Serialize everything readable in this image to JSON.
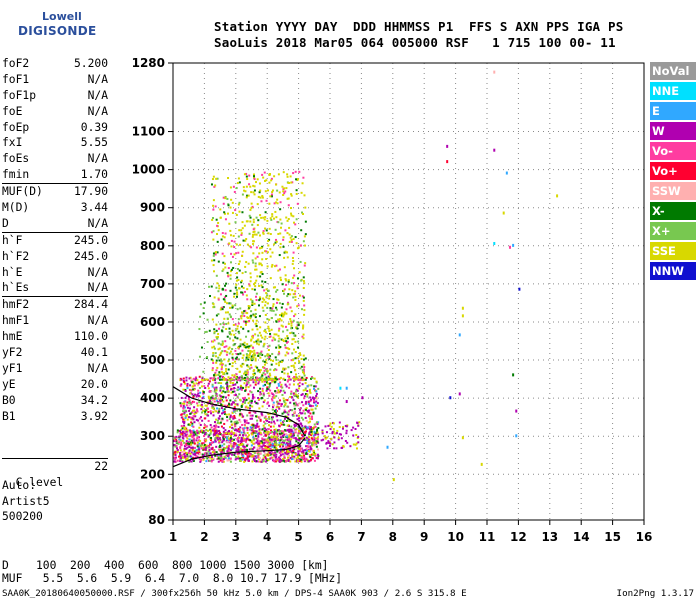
{
  "logo": {
    "line1": "Lowell",
    "line2": "DIGISONDE"
  },
  "header": {
    "line1": "Station YYYY DAY  DDD HHMMSS P1  FFS S AXN PPS IGA PS",
    "line2": "SaoLuis 2018 Mar05 064 005000 RSF   1 715 100 00- 11"
  },
  "params": [
    {
      "name": "foF2",
      "value": "5.200"
    },
    {
      "name": "foF1",
      "value": "N/A"
    },
    {
      "name": "foF1p",
      "value": "N/A"
    },
    {
      "name": "foE",
      "value": "N/A"
    },
    {
      "name": "foEp",
      "value": "0.39"
    },
    {
      "name": "fxI",
      "value": "5.55"
    },
    {
      "name": "foEs",
      "value": "N/A"
    },
    {
      "name": "fmin",
      "value": "1.70"
    },
    {
      "name": "MUF(D)",
      "value": "17.90",
      "sep": true
    },
    {
      "name": "M(D)",
      "value": "3.44"
    },
    {
      "name": "D",
      "value": "N/A"
    },
    {
      "name": "h`F",
      "value": "245.0",
      "sep": true
    },
    {
      "name": "h`F2",
      "value": "245.0"
    },
    {
      "name": "h`E",
      "value": "N/A"
    },
    {
      "name": "h`Es",
      "value": "N/A"
    },
    {
      "name": "hmF2",
      "value": "284.4",
      "sep": true
    },
    {
      "name": "hmF1",
      "value": "N/A"
    },
    {
      "name": "hmE",
      "value": "110.0"
    },
    {
      "name": "yF2",
      "value": "40.1"
    },
    {
      "name": "yF1",
      "value": "N/A"
    },
    {
      "name": "yE",
      "value": "20.0"
    },
    {
      "name": "B0",
      "value": "34.2"
    },
    {
      "name": "B1",
      "value": "3.92"
    }
  ],
  "clevel": {
    "name": "C-level",
    "value": "22"
  },
  "auto": {
    "line1": "Auto:",
    "line2": "Artist5",
    "line3": "500200"
  },
  "legend": [
    {
      "label": "NoVal",
      "color": "#9a9a9a"
    },
    {
      "label": "NNE",
      "color": "#00e0ff"
    },
    {
      "label": "E",
      "color": "#30a8ff"
    },
    {
      "label": "W",
      "color": "#b000b0"
    },
    {
      "label": "Vo-",
      "color": "#ff3ca0"
    },
    {
      "label": "Vo+",
      "color": "#ff0030"
    },
    {
      "label": "SSW",
      "color": "#ffb0b0"
    },
    {
      "label": "X-",
      "color": "#007a00"
    },
    {
      "label": "X+",
      "color": "#78c850"
    },
    {
      "label": "SSE",
      "color": "#d8d800"
    },
    {
      "label": "NNW",
      "color": "#1010d0"
    }
  ],
  "bottom": {
    "d_line": "D    100  200  400  600  800 1000 1500 3000 [km]",
    "muf_line": "MUF   5.5  5.6  5.9  6.4  7.0  8.0 10.7 17.9 [MHz]",
    "footer": "SAA0K_20180640050000.RSF / 300fx256h 50 kHz 5.0 km / DPS-4 SAA0K 903 / 2.6 S 315.8 E",
    "version": "Ion2Png 1.3.17"
  },
  "chart_data": {
    "type": "scatter",
    "xlim": [
      1,
      16
    ],
    "ylim": [
      80,
      1280
    ],
    "x_ticks": [
      "1",
      "2",
      "3",
      "4",
      "5",
      "6",
      "7",
      "8",
      "9",
      "10",
      "11",
      "12",
      "13",
      "14",
      "15",
      "16"
    ],
    "y_ticks": [
      "80",
      "200",
      "300",
      "400",
      "500",
      "600",
      "700",
      "800",
      "900",
      "1000",
      "1100",
      "1280"
    ],
    "grid": true,
    "trace_lines": [
      {
        "name": "O-trace",
        "color": "#000000",
        "points": [
          [
            1.0,
            220
          ],
          [
            1.6,
            240
          ],
          [
            2.2,
            250
          ],
          [
            3.0,
            258
          ],
          [
            4.0,
            262
          ],
          [
            4.6,
            265
          ],
          [
            5.0,
            275
          ],
          [
            5.2,
            295
          ]
        ]
      },
      {
        "name": "profile",
        "color": "#000000",
        "points": [
          [
            1.0,
            430
          ],
          [
            1.6,
            400
          ],
          [
            2.2,
            385
          ],
          [
            3.0,
            372
          ],
          [
            4.0,
            362
          ],
          [
            4.6,
            350
          ],
          [
            5.0,
            330
          ],
          [
            5.2,
            300
          ]
        ]
      }
    ],
    "isolated_points": [
      {
        "x": 9.7,
        "y": 1065,
        "color": "#b000b0"
      },
      {
        "x": 9.7,
        "y": 1025,
        "color": "#ff0030"
      },
      {
        "x": 11.2,
        "y": 1055,
        "color": "#b000b0"
      },
      {
        "x": 11.6,
        "y": 995,
        "color": "#30a8ff"
      },
      {
        "x": 11.2,
        "y": 1260,
        "color": "#ffb0b0"
      },
      {
        "x": 11.5,
        "y": 890,
        "color": "#d8d800"
      },
      {
        "x": 11.2,
        "y": 810,
        "color": "#00e0ff"
      },
      {
        "x": 11.8,
        "y": 805,
        "color": "#30a8ff"
      },
      {
        "x": 11.7,
        "y": 800,
        "color": "#ff3ca0"
      },
      {
        "x": 13.2,
        "y": 935,
        "color": "#d8d800"
      },
      {
        "x": 12.0,
        "y": 690,
        "color": "#1010d0"
      },
      {
        "x": 10.2,
        "y": 640,
        "color": "#d8d800"
      },
      {
        "x": 10.2,
        "y": 620,
        "color": "#d8d800"
      },
      {
        "x": 10.1,
        "y": 570,
        "color": "#30a8ff"
      },
      {
        "x": 11.8,
        "y": 465,
        "color": "#007a00"
      },
      {
        "x": 10.1,
        "y": 415,
        "color": "#b000b0"
      },
      {
        "x": 9.8,
        "y": 405,
        "color": "#1010d0"
      },
      {
        "x": 11.9,
        "y": 305,
        "color": "#30a8ff"
      },
      {
        "x": 11.9,
        "y": 370,
        "color": "#b000b0"
      },
      {
        "x": 10.2,
        "y": 300,
        "color": "#d8d800"
      },
      {
        "x": 10.8,
        "y": 230,
        "color": "#d8d800"
      },
      {
        "x": 7.8,
        "y": 275,
        "color": "#30a8ff"
      },
      {
        "x": 8.0,
        "y": 190,
        "color": "#d8d800"
      },
      {
        "x": 6.3,
        "y": 430,
        "color": "#00e0ff"
      },
      {
        "x": 6.5,
        "y": 395,
        "color": "#b000b0"
      },
      {
        "x": 7.0,
        "y": 405,
        "color": "#b000b0"
      },
      {
        "x": 6.5,
        "y": 430,
        "color": "#30a8ff"
      }
    ],
    "echo_regions": [
      {
        "x": [
          1.0,
          5.6
        ],
        "y": [
          200,
          1000
        ],
        "colors": [
          "#b000b0",
          "#ff3ca0",
          "#ff0030",
          "#d8d800",
          "#007a00",
          "#78c850",
          "#ffb0b0",
          "#30a8ff"
        ]
      }
    ]
  }
}
